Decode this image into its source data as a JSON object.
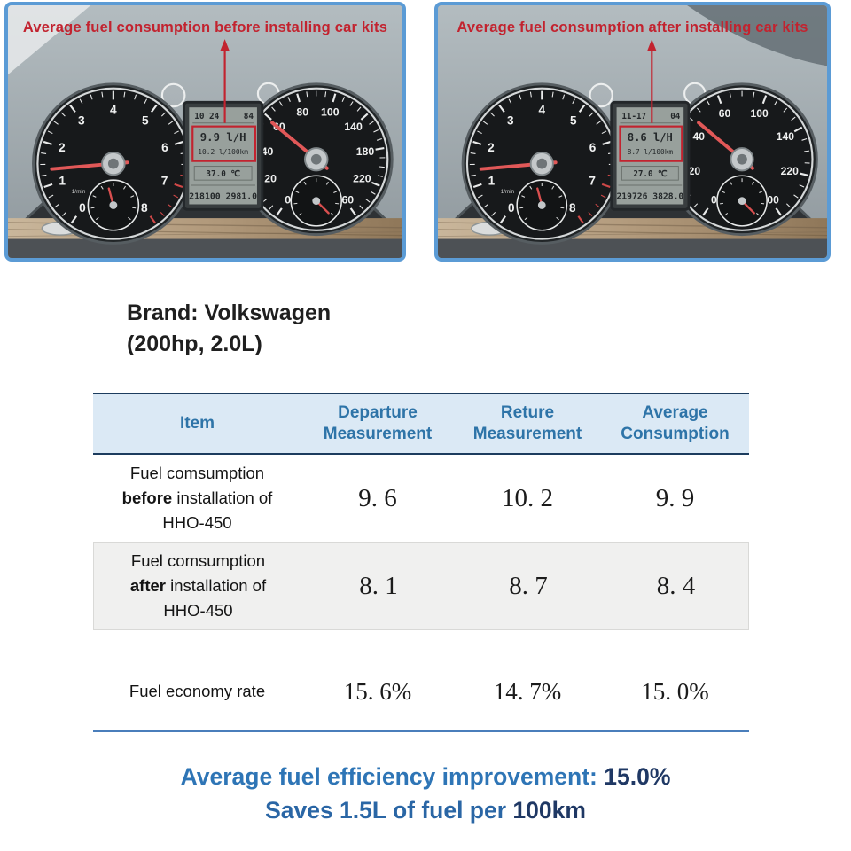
{
  "colors": {
    "photo_border": "#5b9bd5",
    "annotation_red": "#c2232f",
    "header_bg": "#dbe9f5",
    "header_text": "#2e74a8",
    "header_border": "#1c3c5e",
    "row_alt_bg": "#f0f0ef",
    "bottom_rule_blue": "#4a7ebb",
    "footer_blue": "#2e75b6",
    "footer_navy": "#1f3864"
  },
  "panels": [
    {
      "caption": "Average fuel consumption before installing car kits",
      "lcd": {
        "clock": "10 24",
        "temp_out": "84",
        "main": "9.9 l/H",
        "sub": "10.2 l/100km",
        "mid": "37.0 ℃",
        "odometer": "218100 2981.0"
      },
      "tachometer": {
        "unit": "1/min",
        "labels": [
          "0",
          "1",
          "2",
          "3",
          "4",
          "5",
          "6",
          "7",
          "8"
        ]
      },
      "speedometer": {
        "labels": [
          "0",
          "20",
          "40",
          "60",
          "80",
          "100",
          "140",
          "180",
          "220",
          "260"
        ]
      }
    },
    {
      "caption": "Average fuel consumption after installing car kits",
      "lcd": {
        "clock": "11-17",
        "temp_out": "04",
        "main": "8.6 l/H",
        "sub": "8.7 l/100km",
        "mid": "27.0 ℃",
        "odometer": "219726 3828.0"
      },
      "tachometer": {
        "unit": "1/min",
        "labels": [
          "0",
          "1",
          "2",
          "3",
          "4",
          "5",
          "6",
          "7",
          "8"
        ]
      },
      "speedometer": {
        "labels": [
          "0",
          "20",
          "40",
          "60",
          "100",
          "140",
          "220",
          "200"
        ]
      }
    }
  ],
  "brand": {
    "line1": "Brand: Volkswagen",
    "line2": "(200hp, 2.0L)"
  },
  "table": {
    "headers": [
      "Item",
      "Departure Measurement",
      "Reture Measurement",
      "Average Consumption"
    ],
    "rows": [
      {
        "item_top": "Fuel comsumption",
        "item_bold": "before",
        "item_mid": "installation of",
        "item_bottom": "HHO-450",
        "values": [
          "9. 6",
          "10. 2",
          "9. 9"
        ]
      },
      {
        "item_top": "Fuel comsumption",
        "item_bold": "after",
        "item_mid": "installation of",
        "item_bottom": "HHO-450",
        "values": [
          "8. 1",
          "8. 7",
          "8. 4"
        ]
      },
      {
        "item_single": "Fuel economy rate",
        "values": [
          "15. 6%",
          "14. 7%",
          "15. 0%"
        ]
      }
    ]
  },
  "footer": {
    "line1_text": "Average fuel efficiency improvement: ",
    "line1_value": "15.0%",
    "line2_text": "Saves 1.5L of fuel per ",
    "line2_value": "100km"
  },
  "chart_data": {
    "type": "table",
    "title": "Fuel consumption before/after HHO-450 installation (Volkswagen 200hp 2.0L)",
    "columns": [
      "Item",
      "Departure Measurement",
      "Reture Measurement",
      "Average Consumption"
    ],
    "rows": [
      [
        "Fuel comsumption before installation of HHO-450",
        9.6,
        10.2,
        9.9
      ],
      [
        "Fuel comsumption after installation of HHO-450",
        8.1,
        8.7,
        8.4
      ],
      [
        "Fuel economy rate",
        "15.6%",
        "14.7%",
        "15.0%"
      ]
    ],
    "summary": {
      "average_fuel_efficiency_improvement": "15.0%",
      "fuel_saved_per_100km": "1.5L"
    }
  }
}
